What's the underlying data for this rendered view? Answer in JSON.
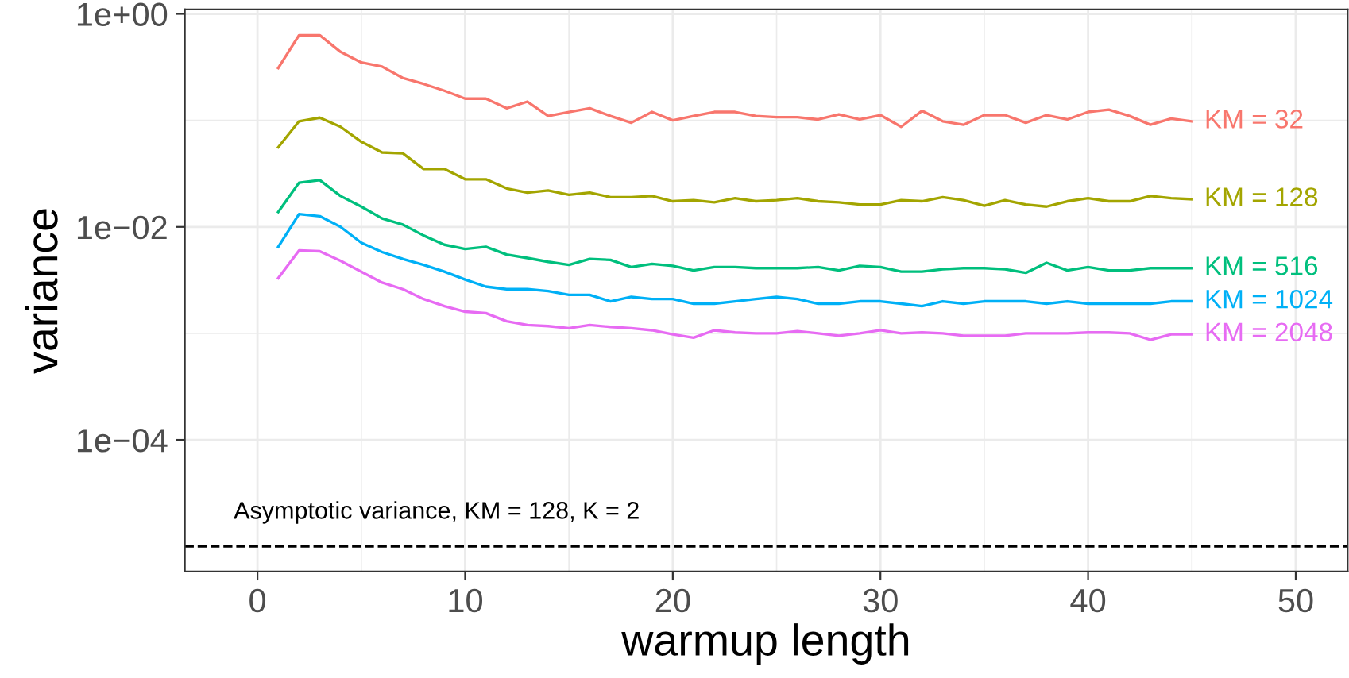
{
  "chart_data": {
    "type": "line",
    "xlabel": "warmup length",
    "ylabel": "variance",
    "log": "y",
    "grid": true,
    "legend": false,
    "line_style": "solid",
    "marker": "none",
    "x": [
      1,
      2,
      3,
      4,
      5,
      6,
      7,
      8,
      9,
      10,
      11,
      12,
      13,
      14,
      15,
      16,
      17,
      18,
      19,
      20,
      21,
      22,
      23,
      24,
      25,
      26,
      27,
      28,
      29,
      30,
      31,
      32,
      33,
      34,
      35,
      36,
      37,
      38,
      39,
      40,
      41,
      42,
      43,
      44,
      45
    ],
    "xlim": [
      -3.5,
      52.5
    ],
    "xticks": [
      0,
      10,
      20,
      30,
      40,
      50
    ],
    "ylim": [
      5.8e-06,
      1.1
    ],
    "yticks": [
      {
        "value": 1,
        "label": "1e+00"
      },
      {
        "value": 0.01,
        "label": "1e−02"
      },
      {
        "value": 0.0001,
        "label": "1e−04"
      }
    ],
    "series": [
      {
        "name": "KM = 32",
        "color": "#f8766d",
        "values": [
          0.31,
          0.63,
          0.63,
          0.44,
          0.35,
          0.32,
          0.25,
          0.22,
          0.19,
          0.16,
          0.16,
          0.13,
          0.15,
          0.11,
          0.12,
          0.13,
          0.11,
          0.095,
          0.12,
          0.1,
          0.11,
          0.12,
          0.12,
          0.11,
          0.107,
          0.107,
          0.102,
          0.114,
          0.102,
          0.112,
          0.087,
          0.123,
          0.098,
          0.091,
          0.112,
          0.112,
          0.095,
          0.112,
          0.102,
          0.12,
          0.126,
          0.11,
          0.091,
          0.104,
          0.098
        ]
      },
      {
        "name": "KM = 128",
        "color": "#a3a500",
        "values": [
          0.056,
          0.098,
          0.106,
          0.087,
          0.063,
          0.05,
          0.049,
          0.035,
          0.035,
          0.028,
          0.028,
          0.023,
          0.021,
          0.022,
          0.02,
          0.021,
          0.019,
          0.019,
          0.0195,
          0.0174,
          0.0178,
          0.017,
          0.0186,
          0.0174,
          0.0178,
          0.0186,
          0.0174,
          0.017,
          0.0162,
          0.0162,
          0.0178,
          0.0174,
          0.019,
          0.0178,
          0.0158,
          0.0178,
          0.0162,
          0.0155,
          0.0174,
          0.0186,
          0.0174,
          0.0174,
          0.0195,
          0.0186,
          0.0182
        ]
      },
      {
        "name": "KM = 516",
        "color": "#00bf7d",
        "values": [
          0.0138,
          0.026,
          0.0275,
          0.0195,
          0.0155,
          0.012,
          0.0105,
          0.0083,
          0.0068,
          0.0062,
          0.0065,
          0.0055,
          0.0051,
          0.0047,
          0.0044,
          0.005,
          0.0049,
          0.0042,
          0.0045,
          0.0043,
          0.0039,
          0.0042,
          0.0042,
          0.0041,
          0.0041,
          0.0041,
          0.0042,
          0.0039,
          0.0043,
          0.0042,
          0.0038,
          0.0038,
          0.004,
          0.0041,
          0.0041,
          0.004,
          0.0037,
          0.0046,
          0.0039,
          0.0042,
          0.0039,
          0.0039,
          0.0041,
          0.0041,
          0.0041
        ]
      },
      {
        "name": "KM = 1024",
        "color": "#00b0f6",
        "values": [
          0.0065,
          0.0132,
          0.0126,
          0.01,
          0.0071,
          0.0058,
          0.005,
          0.0044,
          0.0038,
          0.0032,
          0.00275,
          0.0026,
          0.0026,
          0.0025,
          0.0023,
          0.0023,
          0.002,
          0.0022,
          0.0021,
          0.0021,
          0.0019,
          0.0019,
          0.002,
          0.0021,
          0.0022,
          0.0021,
          0.0019,
          0.0019,
          0.002,
          0.002,
          0.0019,
          0.0018,
          0.002,
          0.0019,
          0.002,
          0.002,
          0.002,
          0.0019,
          0.002,
          0.0019,
          0.0019,
          0.0019,
          0.0019,
          0.002,
          0.002
        ]
      },
      {
        "name": "KM = 2048",
        "color": "#e76bf3",
        "values": [
          0.0033,
          0.006,
          0.0059,
          0.0048,
          0.0038,
          0.003,
          0.0026,
          0.0021,
          0.0018,
          0.0016,
          0.00155,
          0.0013,
          0.0012,
          0.00117,
          0.00112,
          0.0012,
          0.00115,
          0.00112,
          0.00107,
          0.00098,
          0.00091,
          0.00107,
          0.00102,
          0.001,
          0.001,
          0.00105,
          0.001,
          0.00095,
          0.001,
          0.00107,
          0.001,
          0.00102,
          0.001,
          0.00095,
          0.00095,
          0.00095,
          0.001,
          0.001,
          0.001,
          0.00102,
          0.00102,
          0.001,
          0.00087,
          0.00098,
          0.00098
        ]
      }
    ],
    "ref_lines": [
      {
        "axis": "y",
        "value": 1e-05,
        "color": "#000000",
        "line_style": "dashed"
      }
    ],
    "annotations": [
      "Asymptotic variance, KM = 128, K = 2"
    ]
  }
}
